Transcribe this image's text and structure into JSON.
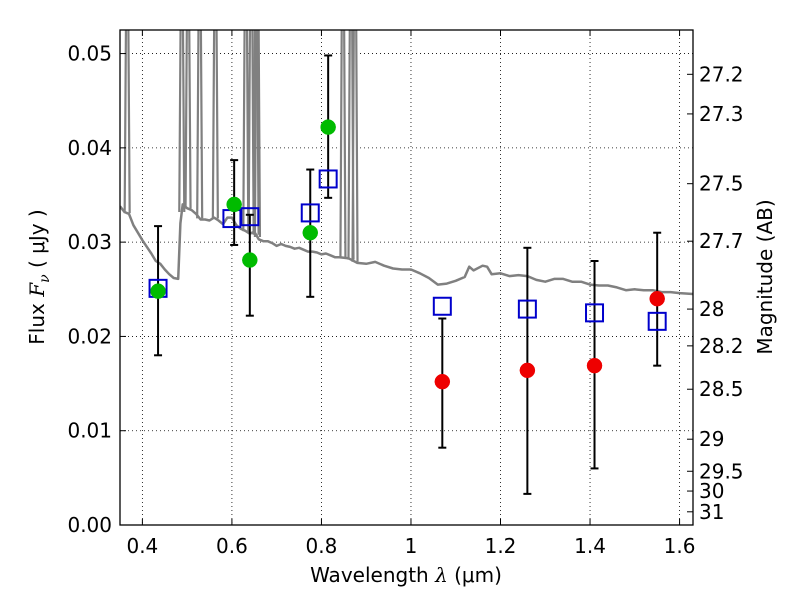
{
  "chart_data": {
    "type": "scatter",
    "xlabel": {
      "prefix": "Wavelength  ",
      "symbol": "λ",
      "suffix": " (μm)"
    },
    "ylabel": {
      "prefix": "Flux  ",
      "symbol": "F",
      "subscript": "ν",
      "suffix": "  ( μJy )"
    },
    "ylabel_right": "Magnitude (AB)",
    "xlim": [
      0.35,
      1.63
    ],
    "ylim": [
      0.0,
      0.0525
    ],
    "grid": true,
    "x_ticks": [
      0.4,
      0.6,
      0.8,
      1.0,
      1.2,
      1.4,
      1.6
    ],
    "x_tick_labels": [
      "0.4",
      "0.6",
      "0.8",
      "1",
      "1.2",
      "1.4",
      "1.6"
    ],
    "y_ticks": [
      0.0,
      0.01,
      0.02,
      0.03,
      0.04,
      0.05
    ],
    "y_tick_labels": [
      "0.00",
      "0.01",
      "0.02",
      "0.03",
      "0.04",
      "0.05"
    ],
    "right_ticks": [
      {
        "label": "27.2",
        "flux": 0.0478
      },
      {
        "label": "27.3",
        "flux": 0.0436
      },
      {
        "label": "27.5",
        "flux": 0.0362
      },
      {
        "label": "27.7",
        "flux": 0.0301
      },
      {
        "label": "28",
        "flux": 0.0229
      },
      {
        "label": "28.2",
        "flux": 0.019
      },
      {
        "label": "28.5",
        "flux": 0.0144
      },
      {
        "label": "29",
        "flux": 0.0091
      },
      {
        "label": "29.5",
        "flux": 0.0057
      },
      {
        "label": "30",
        "flux": 0.0036
      },
      {
        "label": "31",
        "flux": 0.0014
      }
    ],
    "model_spectrum": {
      "color": "#808080",
      "points": [
        [
          0.35,
          0.0338
        ],
        [
          0.36,
          0.0332
        ],
        [
          0.37,
          0.033
        ],
        [
          0.38,
          0.0318
        ],
        [
          0.39,
          0.031
        ],
        [
          0.4,
          0.0302
        ],
        [
          0.41,
          0.0295
        ],
        [
          0.42,
          0.0288
        ],
        [
          0.43,
          0.028
        ],
        [
          0.44,
          0.0277
        ],
        [
          0.45,
          0.0271
        ],
        [
          0.46,
          0.0266
        ],
        [
          0.47,
          0.0262
        ],
        [
          0.48,
          0.0261
        ],
        [
          0.485,
          0.032
        ],
        [
          0.49,
          0.034
        ],
        [
          0.5,
          0.0336
        ],
        [
          0.51,
          0.0334
        ],
        [
          0.52,
          0.033
        ],
        [
          0.53,
          0.0324
        ],
        [
          0.54,
          0.0324
        ],
        [
          0.55,
          0.0323
        ],
        [
          0.56,
          0.0326
        ],
        [
          0.57,
          0.0323
        ],
        [
          0.58,
          0.0319
        ],
        [
          0.59,
          0.0326
        ],
        [
          0.6,
          0.0326
        ],
        [
          0.61,
          0.0318
        ],
        [
          0.62,
          0.0314
        ],
        [
          0.63,
          0.0312
        ],
        [
          0.64,
          0.0309
        ],
        [
          0.65,
          0.0311
        ],
        [
          0.66,
          0.0303
        ],
        [
          0.67,
          0.0301
        ],
        [
          0.68,
          0.0301
        ],
        [
          0.69,
          0.0299
        ],
        [
          0.7,
          0.0296
        ],
        [
          0.71,
          0.0298
        ],
        [
          0.72,
          0.0296
        ],
        [
          0.73,
          0.0295
        ],
        [
          0.74,
          0.0293
        ],
        [
          0.75,
          0.0294
        ],
        [
          0.76,
          0.0292
        ],
        [
          0.77,
          0.029
        ],
        [
          0.78,
          0.029
        ],
        [
          0.79,
          0.0289
        ],
        [
          0.8,
          0.0287
        ],
        [
          0.81,
          0.0288
        ],
        [
          0.82,
          0.0286
        ],
        [
          0.83,
          0.0284
        ],
        [
          0.84,
          0.0284
        ],
        [
          0.86,
          0.0283
        ],
        [
          0.88,
          0.0278
        ],
        [
          0.9,
          0.0277
        ],
        [
          0.92,
          0.0279
        ],
        [
          0.94,
          0.0275
        ],
        [
          0.96,
          0.0272
        ],
        [
          0.98,
          0.0271
        ],
        [
          1.0,
          0.0271
        ],
        [
          1.02,
          0.0267
        ],
        [
          1.04,
          0.0262
        ],
        [
          1.06,
          0.0255
        ],
        [
          1.08,
          0.0256
        ],
        [
          1.1,
          0.0259
        ],
        [
          1.12,
          0.0263
        ],
        [
          1.13,
          0.0274
        ],
        [
          1.14,
          0.027
        ],
        [
          1.16,
          0.0275
        ],
        [
          1.17,
          0.0274
        ],
        [
          1.18,
          0.0266
        ],
        [
          1.2,
          0.0267
        ],
        [
          1.22,
          0.0264
        ],
        [
          1.24,
          0.0265
        ],
        [
          1.26,
          0.0264
        ],
        [
          1.28,
          0.026
        ],
        [
          1.3,
          0.0258
        ],
        [
          1.32,
          0.0261
        ],
        [
          1.34,
          0.0261
        ],
        [
          1.36,
          0.0258
        ],
        [
          1.38,
          0.0258
        ],
        [
          1.4,
          0.0255
        ],
        [
          1.42,
          0.0254
        ],
        [
          1.44,
          0.0254
        ],
        [
          1.46,
          0.0252
        ],
        [
          1.48,
          0.0249
        ],
        [
          1.5,
          0.025
        ],
        [
          1.52,
          0.0249
        ],
        [
          1.54,
          0.0249
        ],
        [
          1.56,
          0.0247
        ],
        [
          1.58,
          0.0247
        ],
        [
          1.6,
          0.0246
        ],
        [
          1.63,
          0.0245
        ]
      ],
      "emission_lines": [
        {
          "x": 0.366,
          "peak": 0.0525
        },
        {
          "x": 0.488,
          "peak": 0.0525
        },
        {
          "x": 0.502,
          "peak": 0.0525
        },
        {
          "x": 0.528,
          "peak": 0.0525
        },
        {
          "x": 0.563,
          "peak": 0.0525
        },
        {
          "x": 0.631,
          "peak": 0.0525
        },
        {
          "x": 0.643,
          "peak": 0.0525
        },
        {
          "x": 0.654,
          "peak": 0.0525
        },
        {
          "x": 0.657,
          "peak": 0.0525
        },
        {
          "x": 0.848,
          "peak": 0.0525
        },
        {
          "x": 0.866,
          "peak": 0.0525
        },
        {
          "x": 0.875,
          "peak": 0.0525
        }
      ]
    },
    "errorbars": [
      {
        "x": 0.435,
        "low": 0.018,
        "high": 0.0317
      },
      {
        "x": 0.605,
        "low": 0.0297,
        "high": 0.0387
      },
      {
        "x": 0.64,
        "low": 0.0222,
        "high": 0.0329
      },
      {
        "x": 0.775,
        "low": 0.0242,
        "high": 0.0377
      },
      {
        "x": 0.815,
        "low": 0.0347,
        "high": 0.0498
      },
      {
        "x": 1.07,
        "low": 0.0082,
        "high": 0.0219
      },
      {
        "x": 1.26,
        "low": 0.0033,
        "high": 0.0294
      },
      {
        "x": 1.41,
        "low": 0.006,
        "high": 0.028
      },
      {
        "x": 1.55,
        "low": 0.0169,
        "high": 0.031
      }
    ],
    "series": [
      {
        "marker": "square",
        "color": "#0000cc",
        "points": [
          [
            0.435,
            0.0251
          ],
          [
            0.6,
            0.0325
          ],
          [
            0.64,
            0.0327
          ],
          [
            0.775,
            0.0331
          ],
          [
            0.815,
            0.0367
          ],
          [
            1.07,
            0.0232
          ],
          [
            1.26,
            0.0229
          ],
          [
            1.41,
            0.0225
          ],
          [
            1.55,
            0.0216
          ]
        ]
      },
      {
        "marker": "circle",
        "color": "#00bb00",
        "points": [
          [
            0.435,
            0.0248
          ],
          [
            0.605,
            0.034
          ],
          [
            0.64,
            0.0281
          ],
          [
            0.775,
            0.031
          ],
          [
            0.815,
            0.0422
          ]
        ]
      },
      {
        "marker": "circle",
        "color": "#ee0000",
        "points": [
          [
            1.07,
            0.0152
          ],
          [
            1.26,
            0.0164
          ],
          [
            1.41,
            0.0169
          ],
          [
            1.55,
            0.024
          ]
        ]
      }
    ]
  }
}
